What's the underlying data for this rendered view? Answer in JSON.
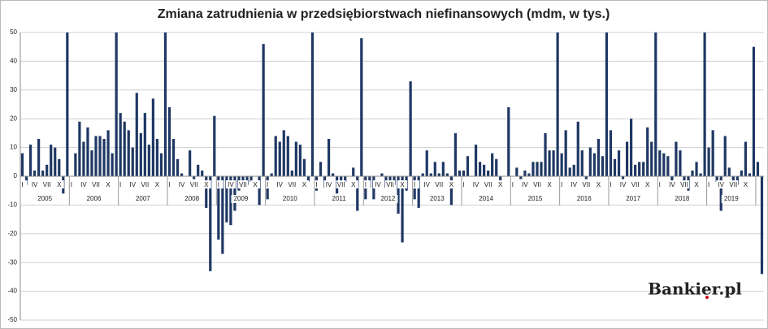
{
  "chart_data": {
    "type": "bar",
    "title": "Zmiana zatrudnienia w przedsiębiorstwach niefinansowych (mdm, w tys.)",
    "watermark": "Bankier.pl",
    "color": "#1f3864",
    "grid": true,
    "ylim": [
      -50,
      50
    ],
    "yticks": [
      -50,
      -40,
      -30,
      -20,
      -10,
      0,
      10,
      20,
      30,
      40,
      50
    ],
    "year_labels": [
      "2005",
      "2006",
      "2007",
      "2008",
      "2009",
      "2010",
      "2011",
      "2012",
      "2013",
      "2014",
      "2015",
      "2016",
      "2017",
      "2018",
      "2019"
    ],
    "categories": [
      "I",
      null,
      null,
      "IV",
      null,
      null,
      "VII",
      null,
      null,
      "X",
      null,
      null,
      "I",
      null,
      null,
      "IV",
      null,
      null,
      "VII",
      null,
      null,
      "X",
      null,
      null,
      "I",
      null,
      null,
      "IV",
      null,
      null,
      "VII",
      null,
      null,
      "X",
      null,
      null,
      "I",
      null,
      null,
      "IV",
      null,
      null,
      "VII",
      null,
      null,
      "X",
      null,
      null,
      "I",
      null,
      null,
      "IV",
      null,
      null,
      "VII",
      null,
      null,
      "X",
      null,
      null,
      "I",
      null,
      null,
      "IV",
      null,
      null,
      "VII",
      null,
      null,
      "X",
      null,
      null,
      "I",
      null,
      null,
      "IV",
      null,
      null,
      "VII",
      null,
      null,
      "X",
      null,
      null,
      "I",
      null,
      null,
      "IV",
      null,
      null,
      "VII",
      null,
      null,
      "X",
      null,
      null,
      "I",
      null,
      null,
      "IV",
      null,
      null,
      "VII",
      null,
      null,
      "X",
      null,
      null,
      "I",
      null,
      null,
      "IV",
      null,
      null,
      "VII",
      null,
      null,
      "X",
      null,
      null,
      "I",
      null,
      null,
      "IV",
      null,
      null,
      "VII",
      null,
      null,
      "X",
      null,
      null,
      "I",
      null,
      null,
      "IV",
      null,
      null,
      "VII",
      null,
      null,
      "X",
      null,
      null,
      "I",
      null,
      null,
      "IV",
      null,
      null,
      "VII",
      null,
      null,
      "X",
      null,
      null,
      "I",
      null,
      null,
      "IV",
      null,
      null,
      "VII",
      null,
      null,
      "X",
      null,
      null,
      "I",
      null,
      null,
      "IV",
      null,
      null,
      "VII",
      null,
      null,
      "X",
      null,
      null,
      null,
      null
    ],
    "values": [
      8,
      -3,
      11,
      2,
      13,
      2,
      4,
      11,
      10,
      6,
      -6,
      50,
      0,
      8,
      19,
      12,
      17,
      9,
      14,
      14,
      13,
      16,
      8,
      50,
      22,
      19,
      16,
      10,
      29,
      15,
      22,
      11,
      27,
      13,
      8,
      50,
      24,
      13,
      6,
      1,
      0,
      9,
      -1,
      4,
      2,
      -11,
      -33,
      21,
      -22,
      -27,
      -16,
      -17,
      -12,
      -5,
      -4,
      -3,
      -2,
      0,
      -10,
      46,
      -8,
      1,
      14,
      12,
      16,
      14,
      2,
      12,
      11,
      6,
      -2,
      50,
      -5,
      5,
      -4,
      13,
      1,
      -6,
      -3,
      -2,
      0,
      3,
      -12,
      48,
      -8,
      -4,
      -8,
      0,
      1,
      -4,
      -2,
      -3,
      -13,
      -23,
      -5,
      33,
      -8,
      -11,
      1,
      9,
      1,
      5,
      1,
      5,
      1,
      -10,
      15,
      2,
      2,
      7,
      0,
      11,
      5,
      4,
      2,
      8,
      6,
      -2,
      0,
      24,
      0,
      3,
      -1,
      2,
      1,
      5,
      5,
      5,
      15,
      9,
      9,
      50,
      8,
      16,
      3,
      4,
      19,
      9,
      -1,
      10,
      8,
      13,
      7,
      50,
      16,
      6,
      9,
      -1,
      12,
      20,
      4,
      5,
      5,
      17,
      12,
      50,
      9,
      8,
      7,
      -2,
      12,
      9,
      -3,
      -5,
      2,
      5,
      1,
      50,
      10,
      16,
      -2,
      -12,
      14,
      3,
      -4,
      -3,
      2,
      12,
      1,
      45,
      5,
      -34
    ]
  }
}
